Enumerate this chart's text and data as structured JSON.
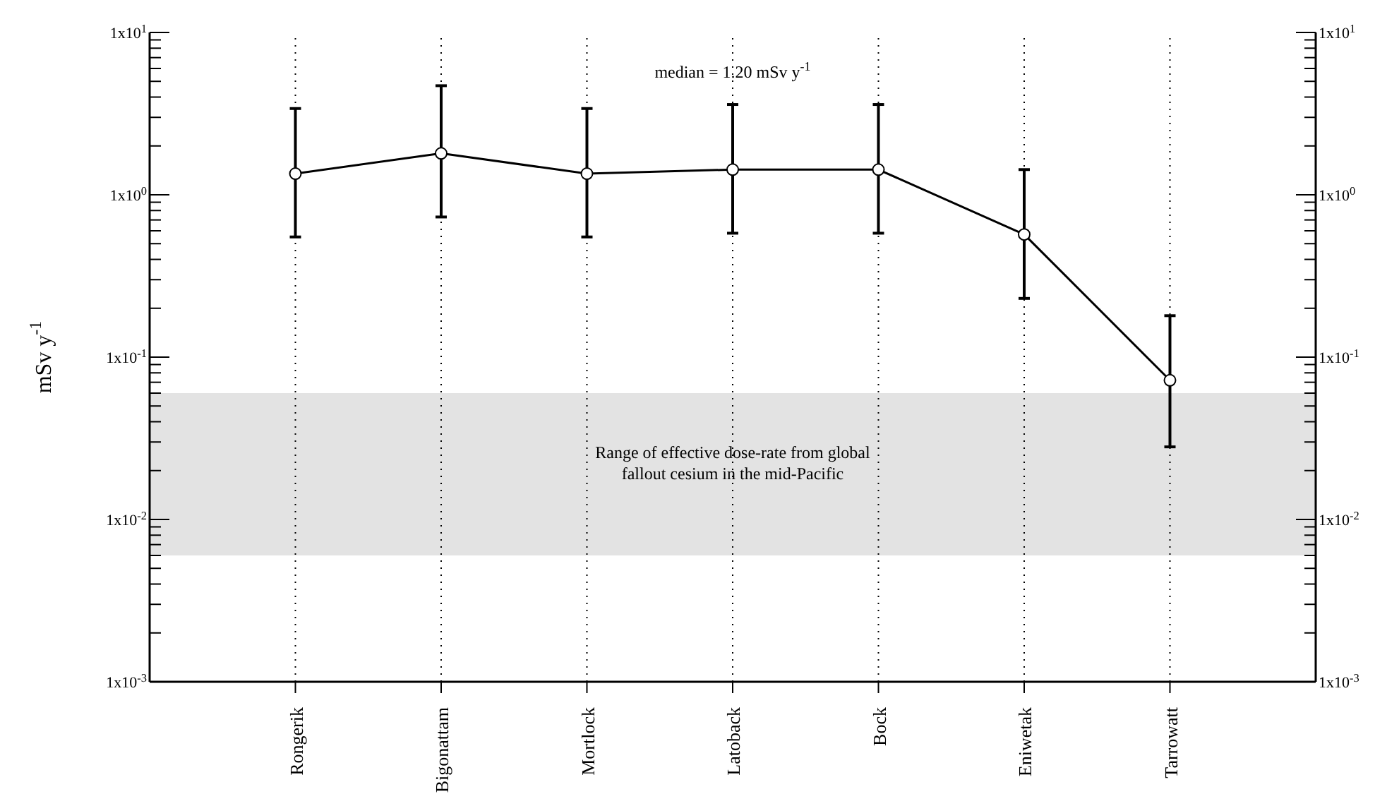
{
  "chart_data": {
    "type": "line",
    "ylabel": "mSv y$^{-1}$",
    "categories": [
      "Rongerik",
      "Bigonattam",
      "Mortlock",
      "Latoback",
      "Bock",
      "Eniwetak",
      "Tarrowatt"
    ],
    "series": [
      {
        "color": "#000000",
        "values": [
          1.35,
          1.8,
          1.35,
          1.43,
          1.43,
          0.57,
          0.072
        ],
        "errors": [
          [
            0.55,
            3.4
          ],
          [
            0.73,
            4.7
          ],
          [
            0.55,
            3.4
          ],
          [
            0.58,
            3.6
          ],
          [
            0.58,
            3.6
          ],
          [
            0.23,
            1.43
          ],
          [
            0.028,
            0.18
          ]
        ]
      }
    ],
    "log": true,
    "marker": "circle",
    "line_style": "solid",
    "grid": "x",
    "ylim": [
      0.001,
      10
    ],
    "yticks": [
      {
        "value": 0.001,
        "label": "1x10$^{-3}$"
      },
      {
        "value": 0.002,
        "label": null
      },
      {
        "value": 0.003,
        "label": null
      },
      {
        "value": 0.004,
        "label": null
      },
      {
        "value": 0.005,
        "label": null
      },
      {
        "value": 0.006,
        "label": null
      },
      {
        "value": 0.007,
        "label": null
      },
      {
        "value": 0.008,
        "label": null
      },
      {
        "value": 0.009,
        "label": null
      },
      {
        "value": 0.01,
        "label": "1x10$^{-2}$"
      },
      {
        "value": 0.02,
        "label": null
      },
      {
        "value": 0.03,
        "label": null
      },
      {
        "value": 0.04,
        "label": null
      },
      {
        "value": 0.05,
        "label": null
      },
      {
        "value": 0.06,
        "label": null
      },
      {
        "value": 0.07,
        "label": null
      },
      {
        "value": 0.08,
        "label": null
      },
      {
        "value": 0.09,
        "label": null
      },
      {
        "value": 0.1,
        "label": "1x10$^{-1}$"
      },
      {
        "value": 0.2,
        "label": null
      },
      {
        "value": 0.3,
        "label": null
      },
      {
        "value": 0.4,
        "label": null
      },
      {
        "value": 0.5,
        "label": null
      },
      {
        "value": 0.6,
        "label": null
      },
      {
        "value": 0.7,
        "label": null
      },
      {
        "value": 0.8,
        "label": null
      },
      {
        "value": 0.9,
        "label": null
      },
      {
        "value": 1,
        "label": "1x10$^{0}$"
      },
      {
        "value": 2,
        "label": null
      },
      {
        "value": 3,
        "label": null
      },
      {
        "value": 4,
        "label": null
      },
      {
        "value": 5,
        "label": null
      },
      {
        "value": 6,
        "label": null
      },
      {
        "value": 7,
        "label": null
      },
      {
        "value": 8,
        "label": null
      },
      {
        "value": 9,
        "label": null
      },
      {
        "value": 10,
        "label": "1x10$^{1}$"
      }
    ],
    "bands": [
      {
        "axis": "y",
        "from": 0.006,
        "to": 0.06,
        "label": "Range of effective dose-rate from global fallout cesium in the mid-Pacific",
        "color": "#e3e3e3"
      }
    ],
    "annotations": [
      "median = 1.20 mSv y$^{-1}$"
    ]
  }
}
